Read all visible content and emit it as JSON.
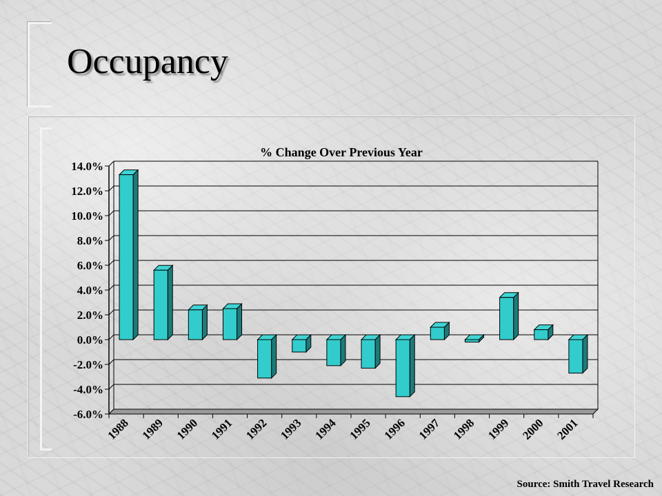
{
  "slide": {
    "title": "Occupancy",
    "source": "Source: Smith Travel Research"
  },
  "colors": {
    "bar_front": "#33cccc",
    "bar_side": "#1f7a7a",
    "bar_top": "#40d4d4",
    "grid": "#000000"
  },
  "chart_data": {
    "type": "bar",
    "title": "% Change Over Previous Year",
    "xlabel": "",
    "ylabel": "",
    "categories": [
      "1988",
      "1989",
      "1990",
      "1991",
      "1992",
      "1993",
      "1994",
      "1995",
      "1996",
      "1997",
      "1998",
      "1999",
      "2000",
      "2001"
    ],
    "values": [
      13.3,
      5.6,
      2.4,
      2.5,
      -3.1,
      -1.0,
      -2.1,
      -2.3,
      -4.6,
      1.0,
      -0.2,
      3.4,
      0.8,
      -2.7
    ],
    "ylim": [
      -6.0,
      14.0
    ],
    "yticks": [
      "14.0%",
      "12.0%",
      "10.0%",
      "8.0%",
      "6.0%",
      "4.0%",
      "2.0%",
      "0.0%",
      "-2.0%",
      "-4.0%",
      "-6.0%"
    ],
    "grid": true,
    "legend": "none",
    "style": "3d-column"
  }
}
